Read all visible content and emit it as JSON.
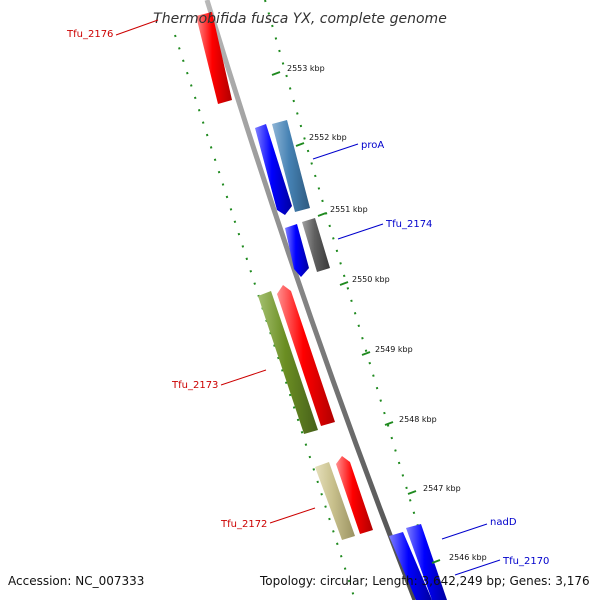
{
  "title": "Thermobifida fusca YX, complete genome",
  "footer": {
    "accession": "Accession: NC_007333",
    "stats": "Topology: circular; Length: 3,642,249 bp; Genes: 3,176"
  },
  "ticks": [
    "2553 kbp",
    "2552 kbp",
    "2551 kbp",
    "2550 kbp",
    "2549 kbp",
    "2548 kbp",
    "2547 kbp",
    "2546 kbp"
  ],
  "gene_labels": [
    {
      "text": "Tfu_2176",
      "color": "#cc0000"
    },
    {
      "text": "proA",
      "color": "#0000cc"
    },
    {
      "text": "Tfu_2174",
      "color": "#0000cc"
    },
    {
      "text": "Tfu_2173",
      "color": "#cc0000"
    },
    {
      "text": "Tfu_2172",
      "color": "#cc0000"
    },
    {
      "text": "nadD",
      "color": "#0000cc"
    },
    {
      "text": "Tfu_2170",
      "color": "#0000cc"
    }
  ],
  "colors": {
    "backbone": "#808080",
    "tick": "#1f8a1f",
    "forward_cds": "#ff0000",
    "reverse_cds": "#0000ff",
    "steelblue_feature": "#4682b4",
    "gray_feature": "#606060",
    "olive_feature": "#6b8e23",
    "khaki_feature": "#c8c08c"
  }
}
